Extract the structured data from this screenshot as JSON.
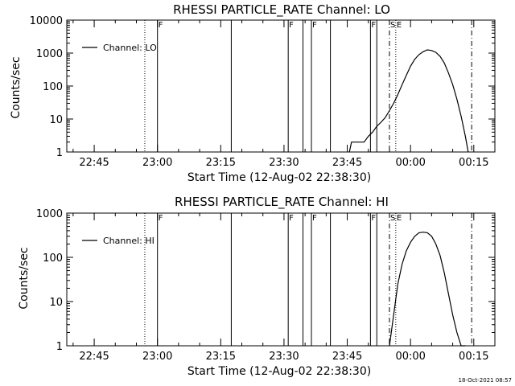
{
  "footer_timestamp": "18-Oct-2021 08:57",
  "chart_data": [
    {
      "type": "line",
      "title": "RHESSI PARTICLE_RATE Channel: LO",
      "xlabel": "Start Time (12-Aug-02 22:38:30)",
      "ylabel": "Counts/sec",
      "y_scale": "log",
      "ylim": [
        1,
        10000
      ],
      "yticks": [
        1,
        10,
        100,
        1000,
        10000
      ],
      "yticklabels": [
        "1",
        "10",
        "100",
        "1000",
        "10000"
      ],
      "xlim": [
        "22:38:30",
        "00:20:00"
      ],
      "xticks": [
        "22:45",
        "23:00",
        "23:15",
        "23:30",
        "23:45",
        "00:00",
        "00:15"
      ],
      "legend": {
        "label": "Channel: LO",
        "placement": "top-left"
      },
      "markers": [
        {
          "time": "22:57:00",
          "style": "dotted",
          "label": ""
        },
        {
          "time": "23:00:00",
          "style": "solid",
          "label": "F"
        },
        {
          "time": "23:17:30",
          "style": "solid",
          "label": ""
        },
        {
          "time": "23:31:00",
          "style": "solid",
          "label": "F"
        },
        {
          "time": "23:34:30",
          "style": "solid",
          "label": ""
        },
        {
          "time": "23:36:30",
          "style": "solid",
          "label": "F"
        },
        {
          "time": "23:41:00",
          "style": "solid",
          "label": ""
        },
        {
          "time": "23:50:30",
          "style": "solid",
          "label": "F"
        },
        {
          "time": "23:52:00",
          "style": "solid",
          "label": ""
        },
        {
          "time": "23:55:00",
          "style": "dashdot",
          "label": "S"
        },
        {
          "time": "23:56:30",
          "style": "dotted",
          "label": "E"
        },
        {
          "time": "00:14:30",
          "style": "dashdot",
          "label": ""
        }
      ],
      "series": [
        {
          "x": [
            "23:45:30",
            "23:46:00",
            "23:47:00",
            "23:48:00",
            "23:49:00",
            "23:50:00",
            "23:51:00",
            "23:52:00",
            "23:53:00",
            "23:54:00",
            "23:55:00",
            "23:56:00",
            "23:57:00",
            "23:58:00",
            "23:59:00",
            "00:00:00",
            "00:01:00",
            "00:02:00",
            "00:03:00",
            "00:04:00",
            "00:05:00",
            "00:06:00",
            "00:07:00",
            "00:08:00",
            "00:09:00",
            "00:10:00",
            "00:11:00",
            "00:12:00",
            "00:13:00",
            "00:13:40"
          ],
          "y": [
            1,
            2,
            2,
            2,
            2,
            3,
            4,
            6,
            8,
            11,
            18,
            30,
            55,
            110,
            210,
            400,
            650,
            900,
            1100,
            1250,
            1200,
            1050,
            800,
            500,
            250,
            110,
            40,
            12,
            3,
            1
          ]
        }
      ]
    },
    {
      "type": "line",
      "title": "RHESSI PARTICLE_RATE Channel: HI",
      "xlabel": "Start Time (12-Aug-02 22:38:30)",
      "ylabel": "Counts/sec",
      "y_scale": "log",
      "ylim": [
        1,
        1000
      ],
      "yticks": [
        1,
        10,
        100,
        1000
      ],
      "yticklabels": [
        "1",
        "10",
        "100",
        "1000"
      ],
      "xlim": [
        "22:38:30",
        "00:20:00"
      ],
      "xticks": [
        "22:45",
        "23:00",
        "23:15",
        "23:30",
        "23:45",
        "00:00",
        "00:15"
      ],
      "legend": {
        "label": "Channel: HI",
        "placement": "top-left"
      },
      "markers": [
        {
          "time": "22:57:00",
          "style": "dotted",
          "label": ""
        },
        {
          "time": "23:00:00",
          "style": "solid",
          "label": "F"
        },
        {
          "time": "23:17:30",
          "style": "solid",
          "label": ""
        },
        {
          "time": "23:31:00",
          "style": "solid",
          "label": "F"
        },
        {
          "time": "23:34:30",
          "style": "solid",
          "label": ""
        },
        {
          "time": "23:36:30",
          "style": "solid",
          "label": "F"
        },
        {
          "time": "23:41:00",
          "style": "solid",
          "label": ""
        },
        {
          "time": "23:50:30",
          "style": "solid",
          "label": "F"
        },
        {
          "time": "23:52:00",
          "style": "solid",
          "label": ""
        },
        {
          "time": "23:55:00",
          "style": "dashdot",
          "label": "S"
        },
        {
          "time": "23:56:30",
          "style": "dotted",
          "label": "E"
        },
        {
          "time": "00:14:30",
          "style": "dashdot",
          "label": ""
        }
      ],
      "series": [
        {
          "x": [
            "23:55:00",
            "23:56:00",
            "23:57:00",
            "23:58:00",
            "23:59:00",
            "00:00:00",
            "00:01:00",
            "00:02:00",
            "00:03:00",
            "00:04:00",
            "00:05:00",
            "00:06:00",
            "00:07:00",
            "00:08:00",
            "00:09:00",
            "00:10:00",
            "00:11:00",
            "00:12:00",
            "00:13:00"
          ],
          "y": [
            1,
            5,
            25,
            70,
            140,
            220,
            300,
            360,
            370,
            360,
            300,
            200,
            110,
            45,
            15,
            5,
            2,
            1,
            1
          ]
        }
      ]
    }
  ]
}
